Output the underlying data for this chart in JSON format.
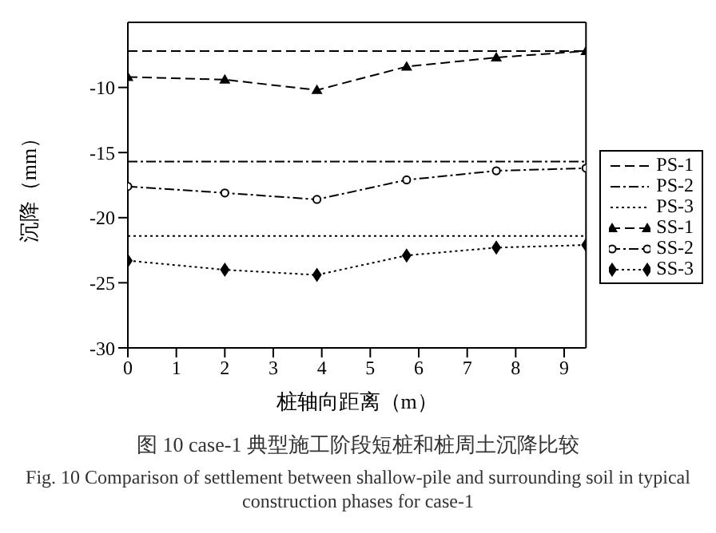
{
  "chart_data": {
    "type": "line",
    "xlabel": "桩轴向距离（m）",
    "ylabel": "沉降（mm）",
    "x": [
      0,
      2,
      3.9,
      5.75,
      7.6,
      9.45
    ],
    "xlim": [
      0,
      9.45
    ],
    "xticks": [
      0,
      1,
      2,
      3,
      4,
      5,
      6,
      7,
      8,
      9
    ],
    "ylim": [
      -30,
      -5
    ],
    "yticks": [
      -30,
      -25,
      -20,
      -15,
      -10
    ],
    "legend": "right",
    "series": [
      {
        "name": "PS-1",
        "color": "#000000",
        "values": [
          -7.2,
          -7.2,
          -7.2,
          -7.2,
          -7.2,
          -7.2
        ],
        "marker": "none",
        "line_style": "dashed"
      },
      {
        "name": "PS-2",
        "color": "#000000",
        "values": [
          -15.7,
          -15.7,
          -15.7,
          -15.7,
          -15.7,
          -15.7
        ],
        "marker": "none",
        "line_style": "dashdot"
      },
      {
        "name": "PS-3",
        "color": "#000000",
        "values": [
          -21.4,
          -21.4,
          -21.4,
          -21.4,
          -21.4,
          -21.4
        ],
        "marker": "none",
        "line_style": "dotted"
      },
      {
        "name": "SS-1",
        "color": "#000000",
        "values": [
          -9.2,
          -9.4,
          -10.2,
          -8.4,
          -7.7,
          -7.2
        ],
        "marker": "triangle",
        "line_style": "dashed"
      },
      {
        "name": "SS-2",
        "color": "#000000",
        "values": [
          -17.6,
          -18.1,
          -18.6,
          -17.1,
          -16.4,
          -16.2
        ],
        "marker": "circle",
        "line_style": "dashdot"
      },
      {
        "name": "SS-3",
        "color": "#000000",
        "values": [
          -23.3,
          -24.0,
          -24.4,
          -22.9,
          -22.3,
          -22.1
        ],
        "marker": "diamond",
        "line_style": "dotted"
      }
    ],
    "annotations": [
      "图 10 case-1 典型施工阶段短桩和桩周土沉降比较",
      "Fig. 10 Comparison of settlement between shallow-pile and surrounding soil in typical construction phases for case-1"
    ]
  }
}
